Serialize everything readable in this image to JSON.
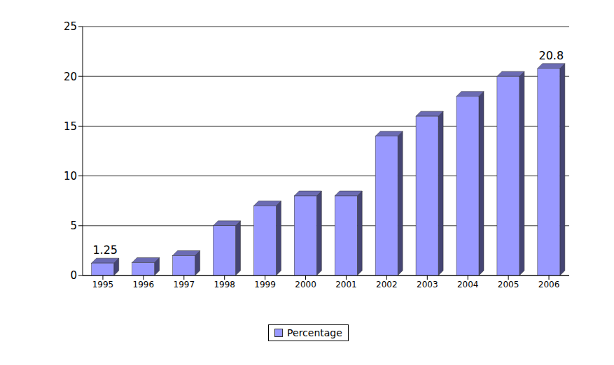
{
  "chart_data": {
    "type": "bar",
    "categories": [
      "1995",
      "1996",
      "1997",
      "1998",
      "1999",
      "2000",
      "2001",
      "2002",
      "2003",
      "2004",
      "2005",
      "2006"
    ],
    "series": [
      {
        "name": "Percentage",
        "color": "#9999ff",
        "values": [
          1.25,
          1.3,
          2,
          5,
          7,
          8,
          8,
          14,
          16,
          18,
          20,
          20.8
        ]
      }
    ],
    "value_labels": [
      "1.25",
      null,
      null,
      null,
      null,
      null,
      null,
      null,
      null,
      null,
      null,
      "20.8"
    ],
    "data_labels": true,
    "ylim": [
      0,
      25
    ],
    "yticks": [
      0,
      5,
      10,
      15,
      20,
      25
    ],
    "grid": true,
    "legend": "bottom"
  }
}
